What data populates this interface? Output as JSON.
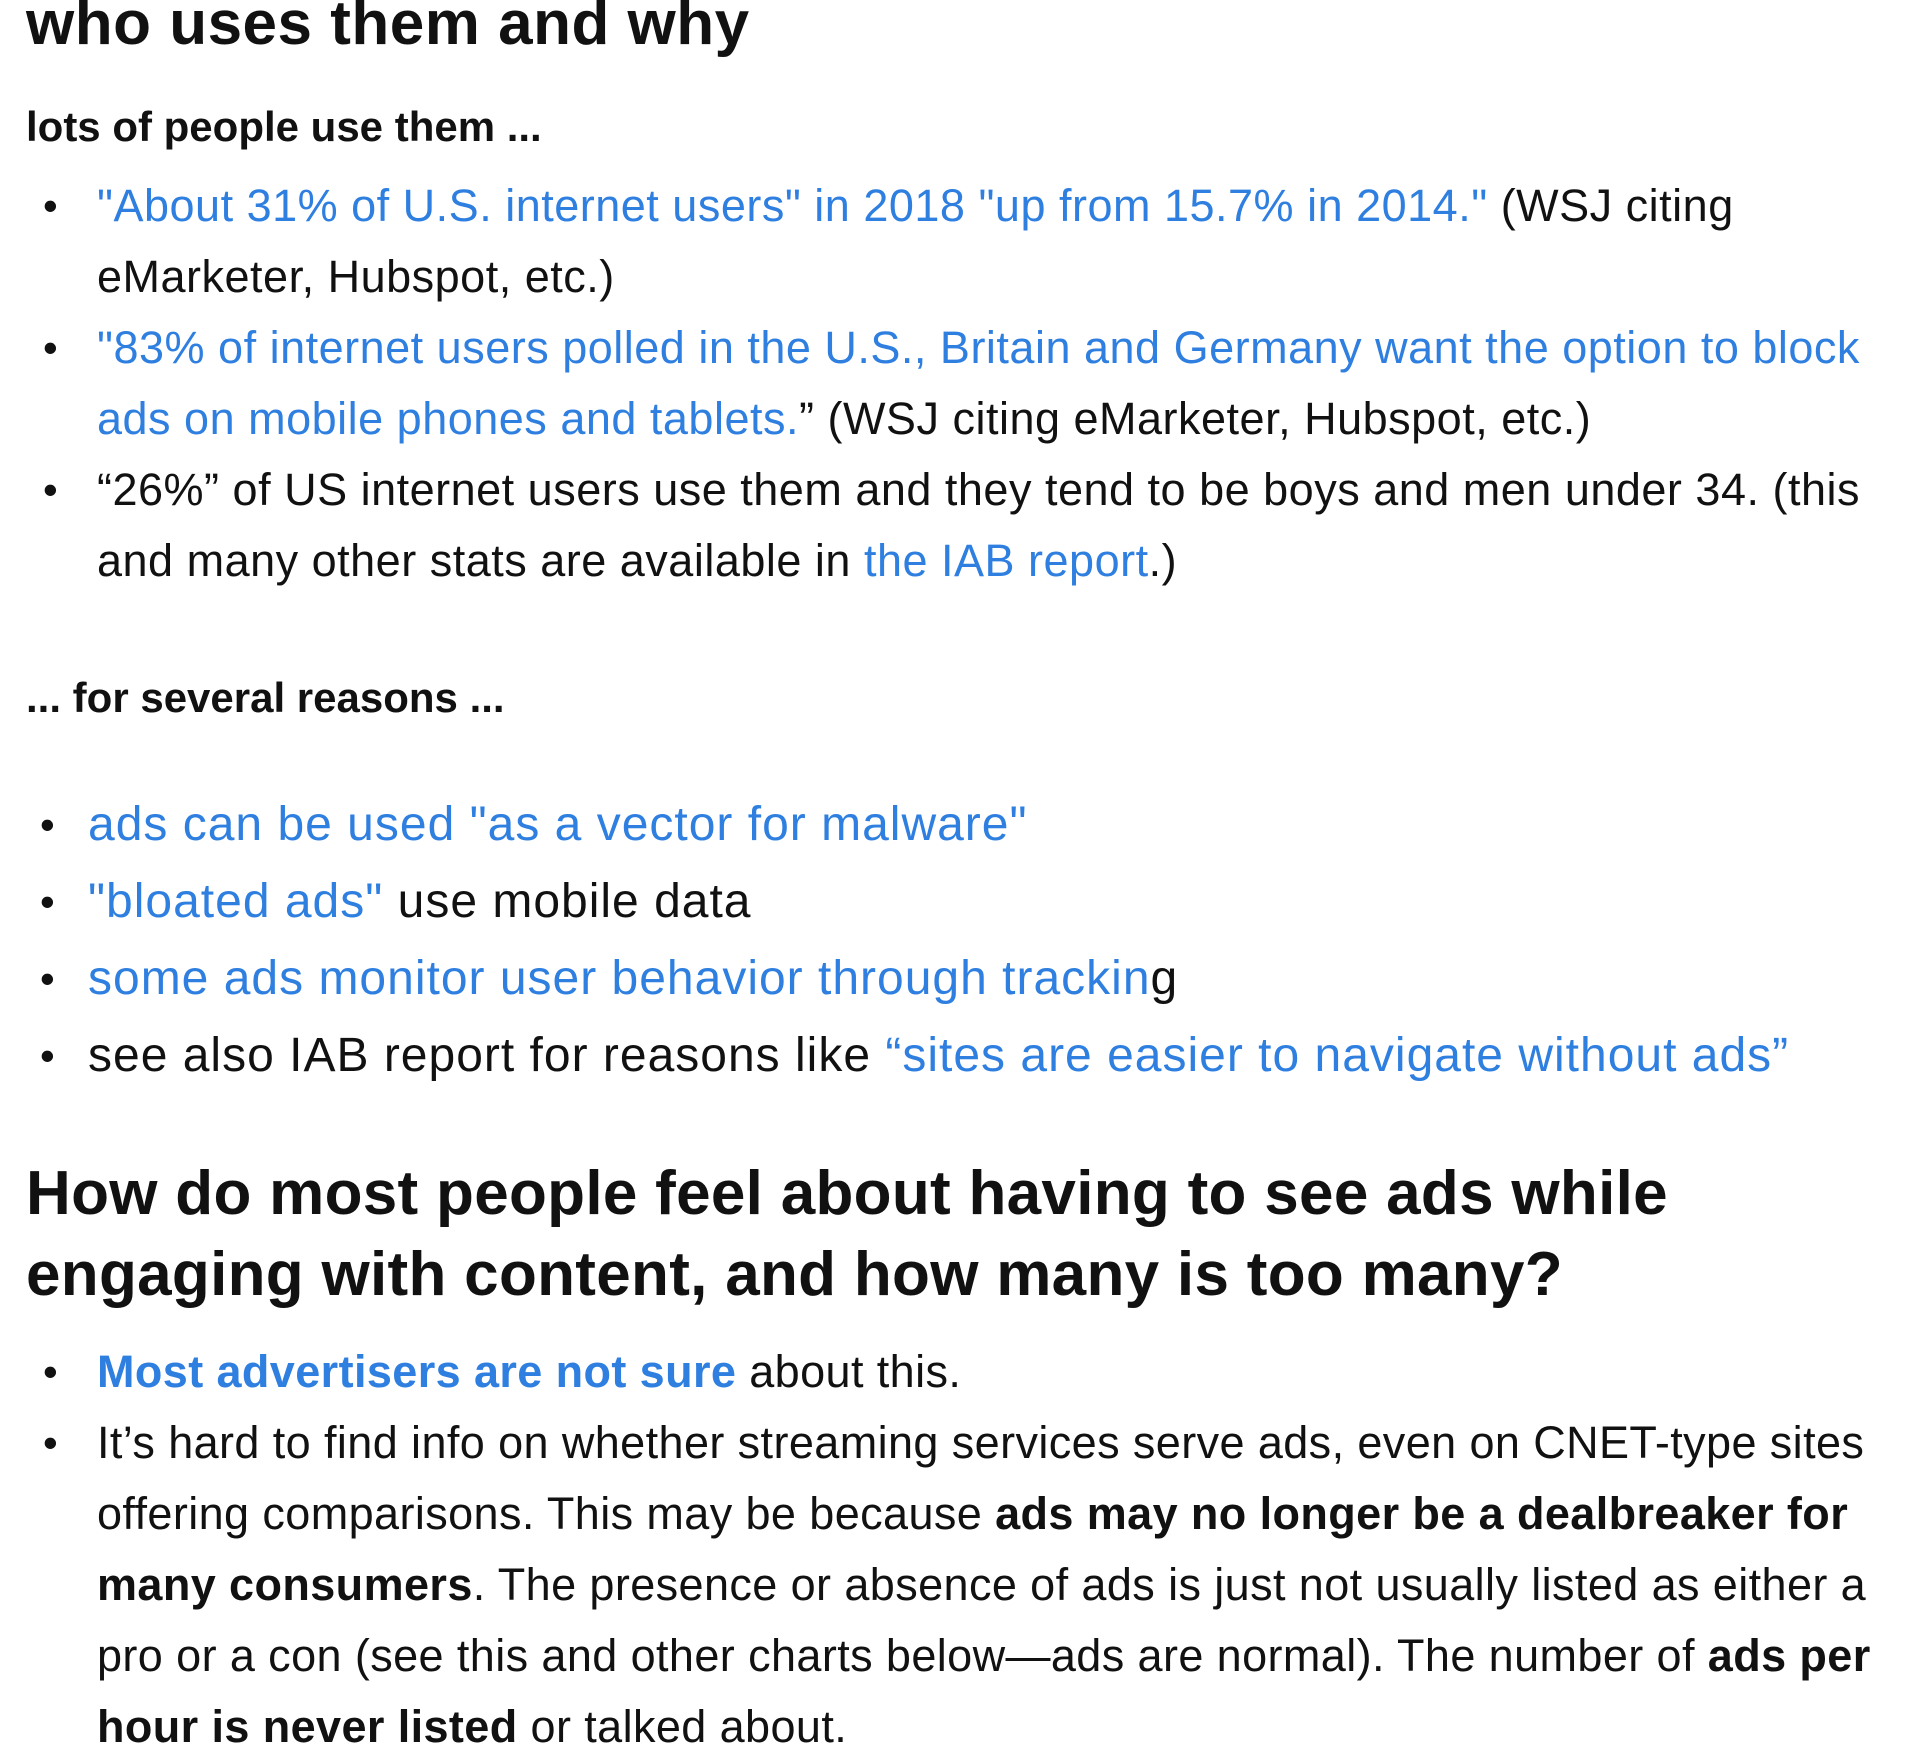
{
  "section1": {
    "title": "who uses them and why",
    "sub1": "lots of people use them ...",
    "items": [
      {
        "link": "\"About 31% of U.S. internet users\" in 2018 \"up from 15.7% in 2014.\"",
        "text": " (WSJ citing eMarketer, Hubspot, etc.)"
      },
      {
        "link": "\"83% of internet users polled in the U.S., Britain and Germany want the option to block ads on mobile phones and tablets.",
        "text": "” (WSJ citing eMarketer, Hubspot, etc.)"
      },
      {
        "text": "“26%” of US internet users use them and they tend to be boys and men under 34. (this and many other stats are available in ",
        "link": "the IAB report",
        "after": ".)"
      }
    ],
    "sub2": "... for several reasons ...",
    "reasons": [
      {
        "link": "ads can be used \"as a vector for malware\"",
        "text": ""
      },
      {
        "link": "\"bloated ads\"",
        "text": " use mobile data"
      },
      {
        "link": "some ads monitor user behavior through trackin",
        "text": "g"
      },
      {
        "pre": "see also IAB report for reasons like ",
        "link": "“sites are easier to navigate without ads”"
      }
    ]
  },
  "section2": {
    "title": "How do most people feel about having to see ads while engaging with content, and how many is too many?",
    "items": [
      {
        "link": "Most advertisers are not sure",
        "text": " about this."
      },
      {
        "t1": "It’s hard to find info on whether streaming services serve ads, even on CNET-type sites offering comparisons. This may be because ",
        "b1": "ads may no longer be a dealbreaker for many consumers",
        "t2": ". The presence or absence of ads is just not usually listed as either a pro or a con (see this and other charts below—ads are normal). The number of ",
        "b2": "ads per hour is never listed",
        "t3": " or talked about."
      }
    ]
  },
  "bullet": "•"
}
